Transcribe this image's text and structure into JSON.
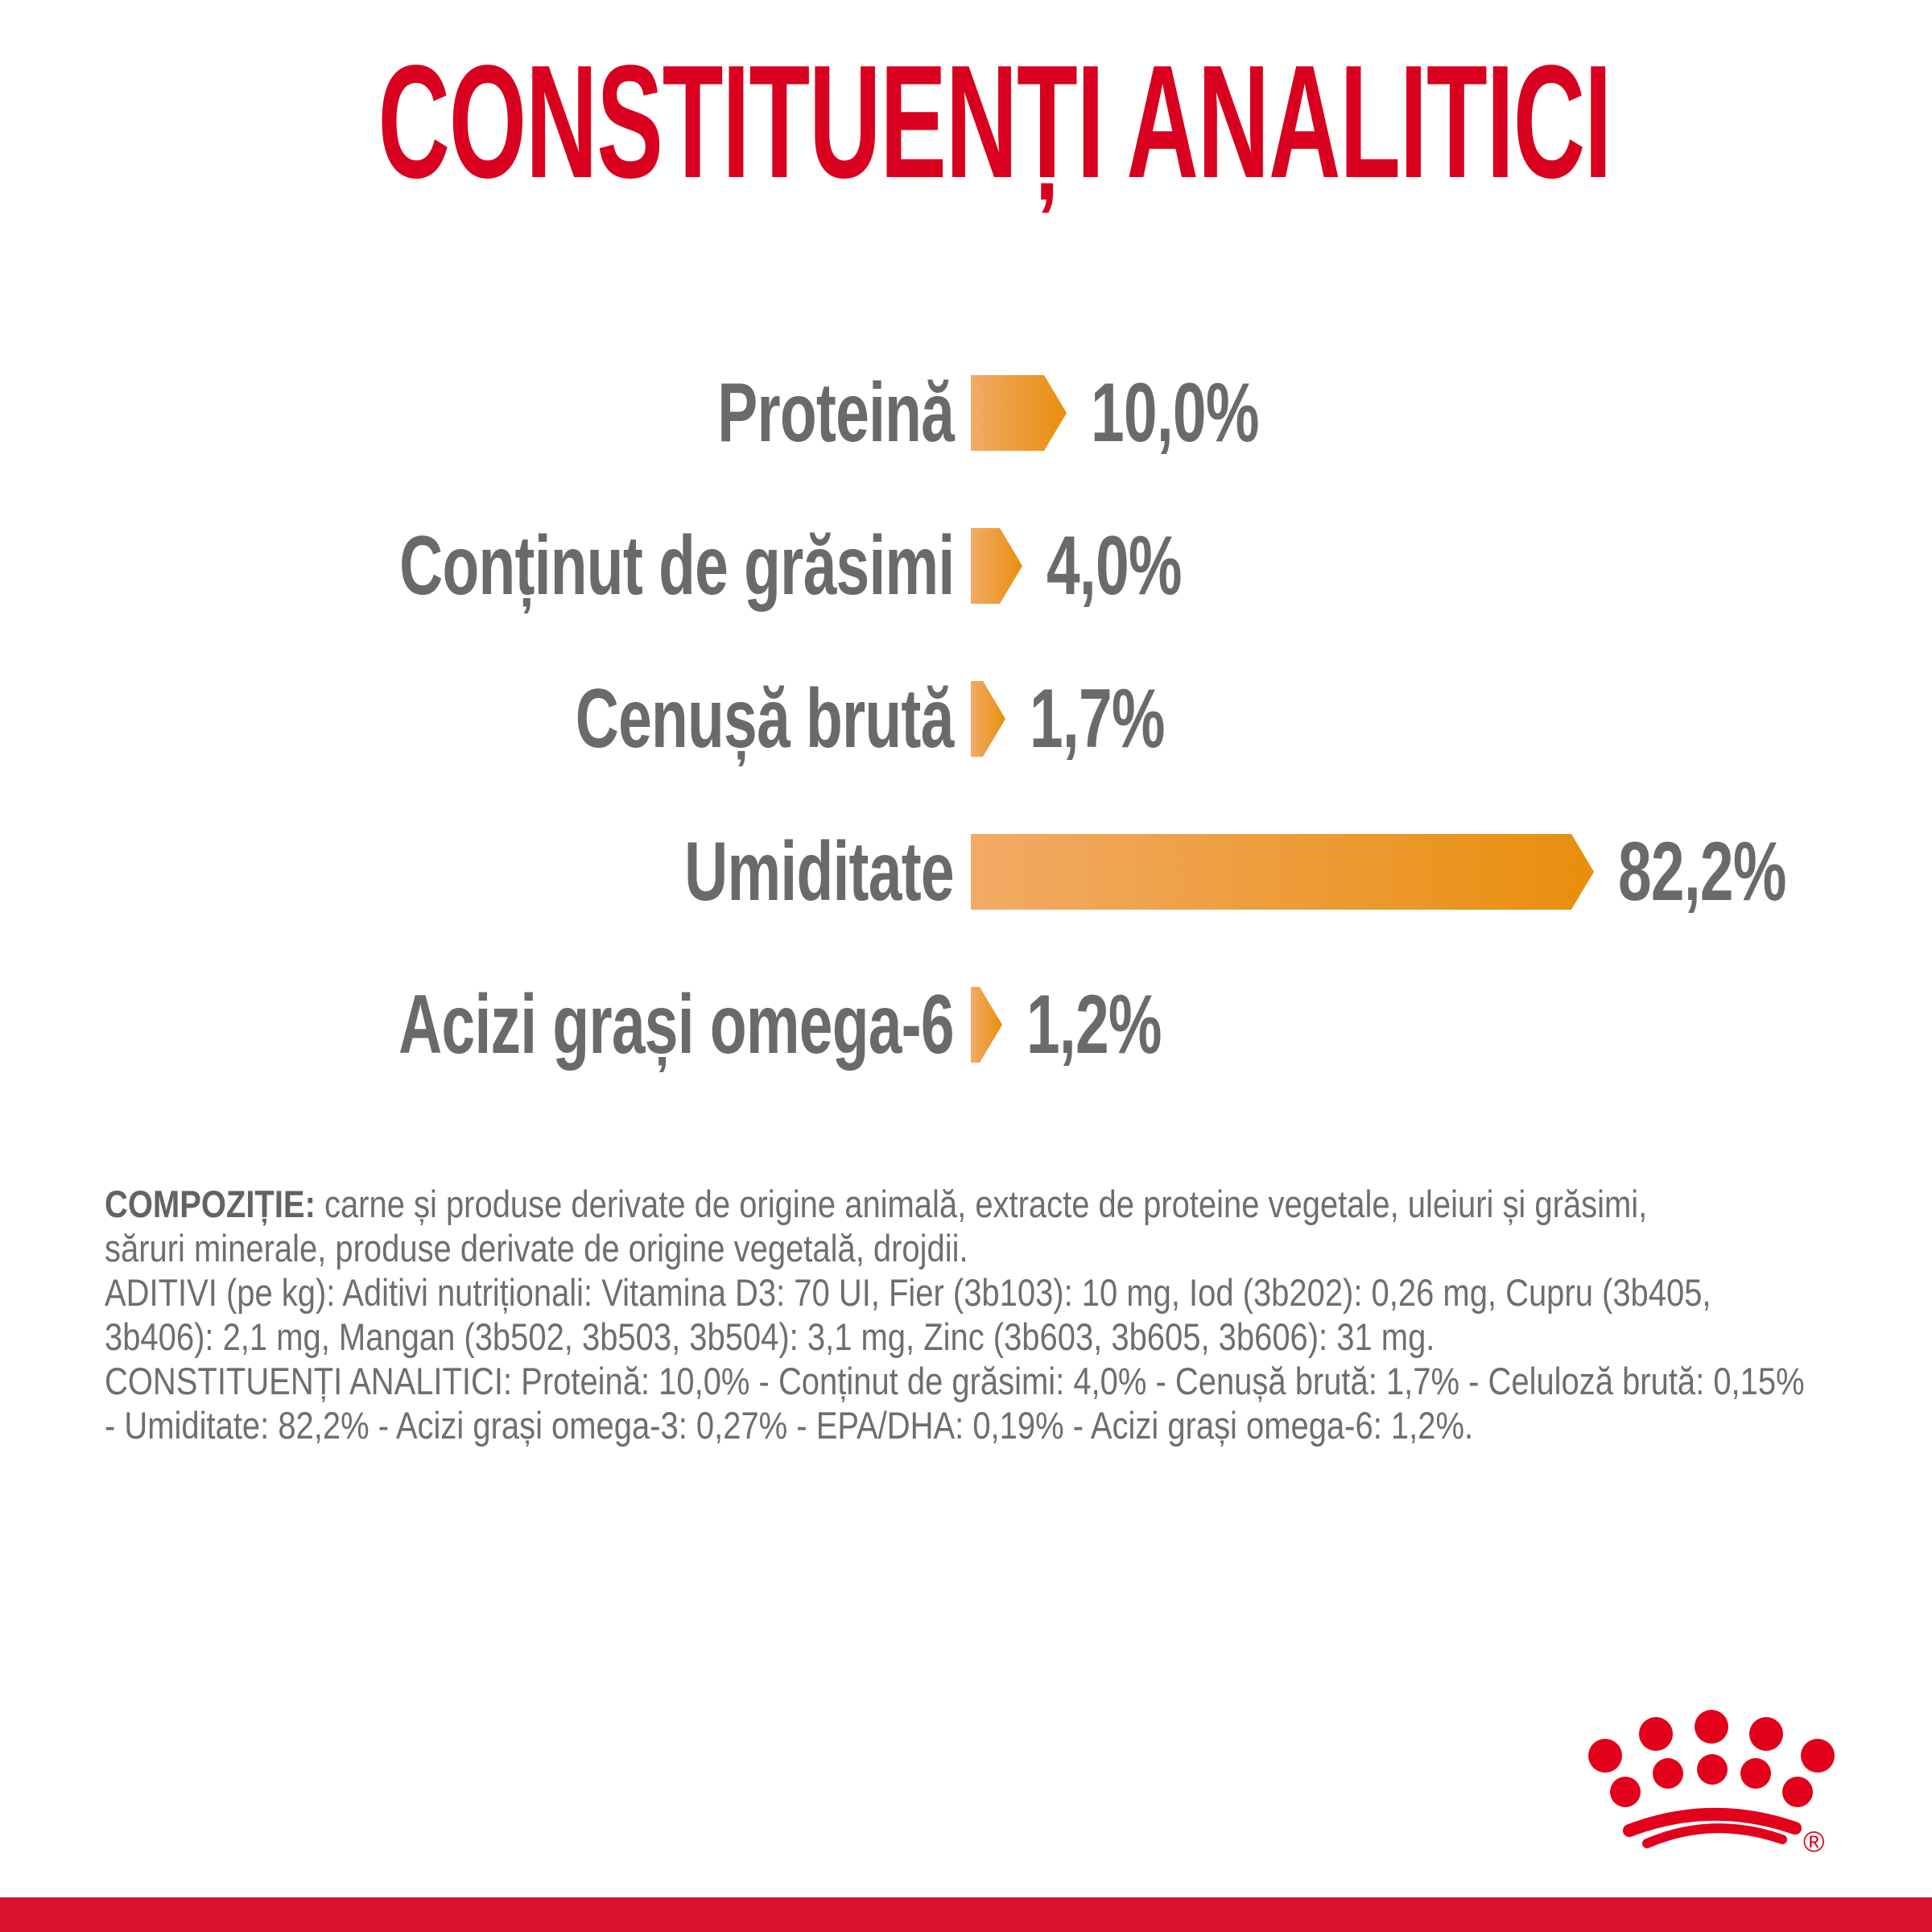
{
  "title": "CONSTITUENȚI ANALITICI",
  "chart_data": {
    "type": "bar",
    "orientation": "horizontal",
    "title": "CONSTITUENȚI ANALITICI",
    "unit": "%",
    "xlim": [
      0,
      85
    ],
    "grid": false,
    "bar_gradient": [
      "#F2AB66",
      "#E98E0D"
    ],
    "rows": [
      {
        "label": "Proteină",
        "value": 10.0,
        "display": "10,0%"
      },
      {
        "label": "Conținut de grăsimi",
        "value": 4.0,
        "display": "4,0%"
      },
      {
        "label": "Cenușă brută",
        "value": 1.7,
        "display": "1,7%"
      },
      {
        "label": "Umiditate",
        "value": 82.2,
        "display": "82,2%"
      },
      {
        "label": "Acizi grași omega-6",
        "value": 1.2,
        "display": "1,2%"
      }
    ]
  },
  "composition": {
    "lead": "COMPOZIȚIE:",
    "line1_rest": " carne și produse derivate de origine animală, extracte de proteine vegetale, uleiuri și grăsimi,",
    "line2": "săruri minerale, produse derivate de origine vegetală, drojdii.",
    "line3": "ADITIVI (pe kg): Aditivi nutriționali: Vitamina D3: 70 UI, Fier (3b103): 10 mg, Iod (3b202): 0,26 mg, Cupru (3b405,",
    "line4": "3b406): 2,1 mg, Mangan (3b502, 3b503, 3b504): 3,1 mg, Zinc (3b603, 3b605, 3b606): 31 mg.",
    "line5": "CONSTITUENȚI ANALITICI: Proteină: 10,0% - Conținut de grăsimi: 4,0% - Cenușă brută: 1,7% - Celuloză brută: 0,15%",
    "line6": "- Umiditate: 82,2% - Acizi grași omega-3: 0,27% - EPA/DHA: 0,19% - Acizi grași omega-6: 1,2%."
  },
  "footer": {
    "logo_icon": "royal-canin-crown-icon",
    "registered_mark": "®"
  },
  "colors": {
    "title_red": "#D8001E",
    "brand_red": "#E2001A",
    "band_red": "#D8112D",
    "bar_gradient_start": "#F2AB66",
    "bar_gradient_end": "#E98E0D",
    "text_gray": "#6E6E6E",
    "label_gray": "#6A6A6A"
  }
}
